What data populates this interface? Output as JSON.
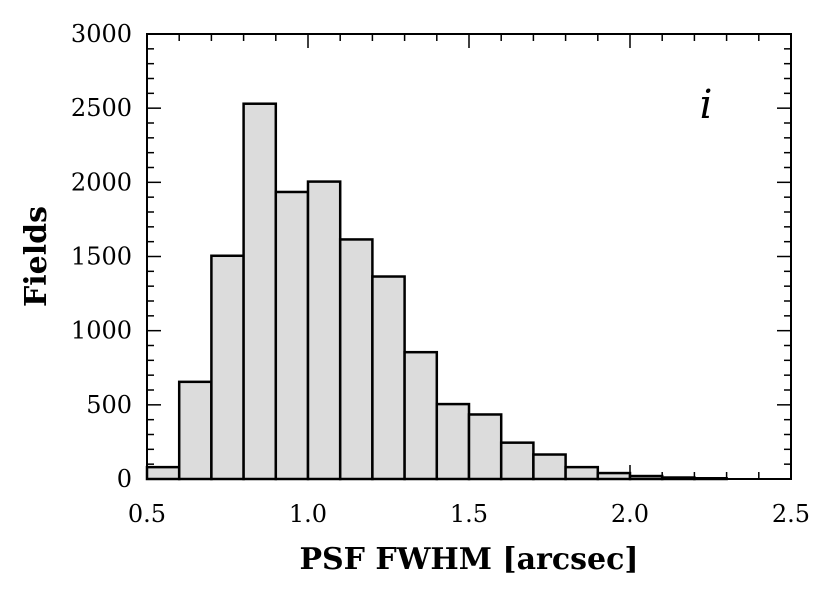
{
  "chart_data": {
    "type": "bar",
    "xlabel": "PSF FWHM [arcsec]",
    "ylabel": "Fields",
    "annotation": "i",
    "xlim": [
      0.5,
      2.5
    ],
    "ylim": [
      0,
      3000
    ],
    "xticks": [
      "0.5",
      "1.0",
      "1.5",
      "2.0",
      "2.5"
    ],
    "yticks": [
      "0",
      "500",
      "1000",
      "1500",
      "2000",
      "2500",
      "3000"
    ],
    "bin_width": 0.1,
    "bin_edges": [
      0.5,
      0.6,
      0.7,
      0.8,
      0.9,
      1.0,
      1.1,
      1.2,
      1.3,
      1.4,
      1.5,
      1.6,
      1.7,
      1.8,
      1.9,
      2.0,
      2.1,
      2.2,
      2.3,
      2.4,
      2.5
    ],
    "values": [
      80,
      655,
      1505,
      2530,
      1935,
      2005,
      1615,
      1365,
      855,
      505,
      435,
      245,
      165,
      80,
      40,
      20,
      10,
      5,
      0,
      0
    ],
    "bar_fill": "#dcdcdc",
    "edge_color": "#000000",
    "grid": false
  }
}
